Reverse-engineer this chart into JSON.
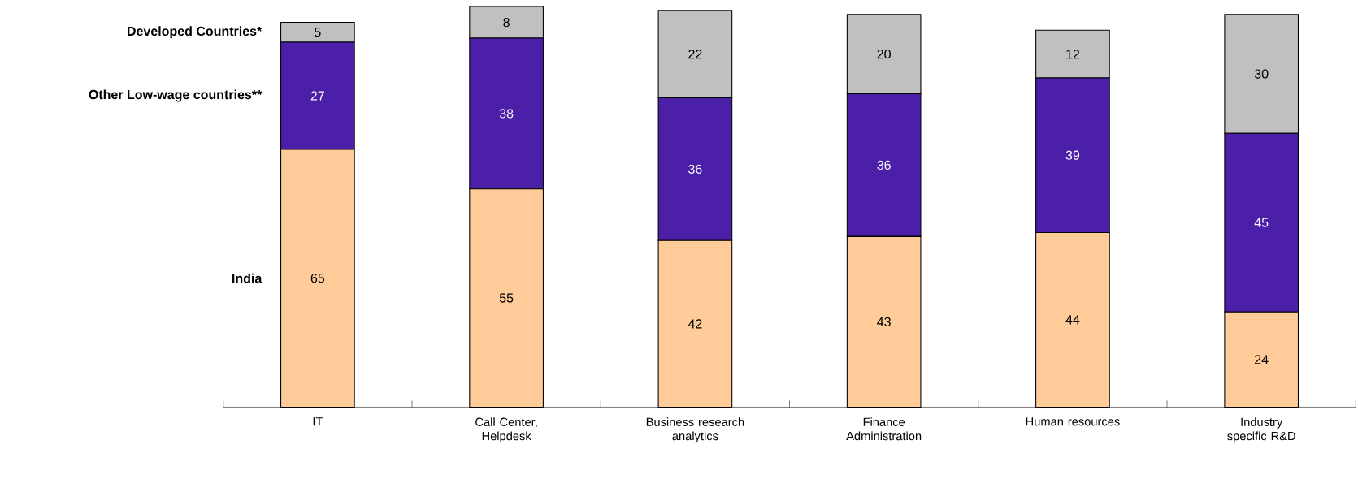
{
  "chart_data": {
    "type": "bar",
    "stacked": true,
    "data_labels": true,
    "categories": [
      "IT",
      "Call Center, Helpdesk",
      "Business research analytics",
      "Finance Administration",
      "Human resources",
      "Industry specific R&D"
    ],
    "series": [
      {
        "name": "India",
        "color": "#ffcc99",
        "values": [
          65,
          55,
          42,
          43,
          44,
          24
        ]
      },
      {
        "name": "Other Low-wage countries**",
        "color": "#4b1fa8",
        "values": [
          27,
          38,
          36,
          36,
          39,
          45
        ]
      },
      {
        "name": "Developed Countries*",
        "color": "#c0c0c0",
        "values": [
          5,
          8,
          22,
          20,
          12,
          30
        ]
      }
    ]
  }
}
